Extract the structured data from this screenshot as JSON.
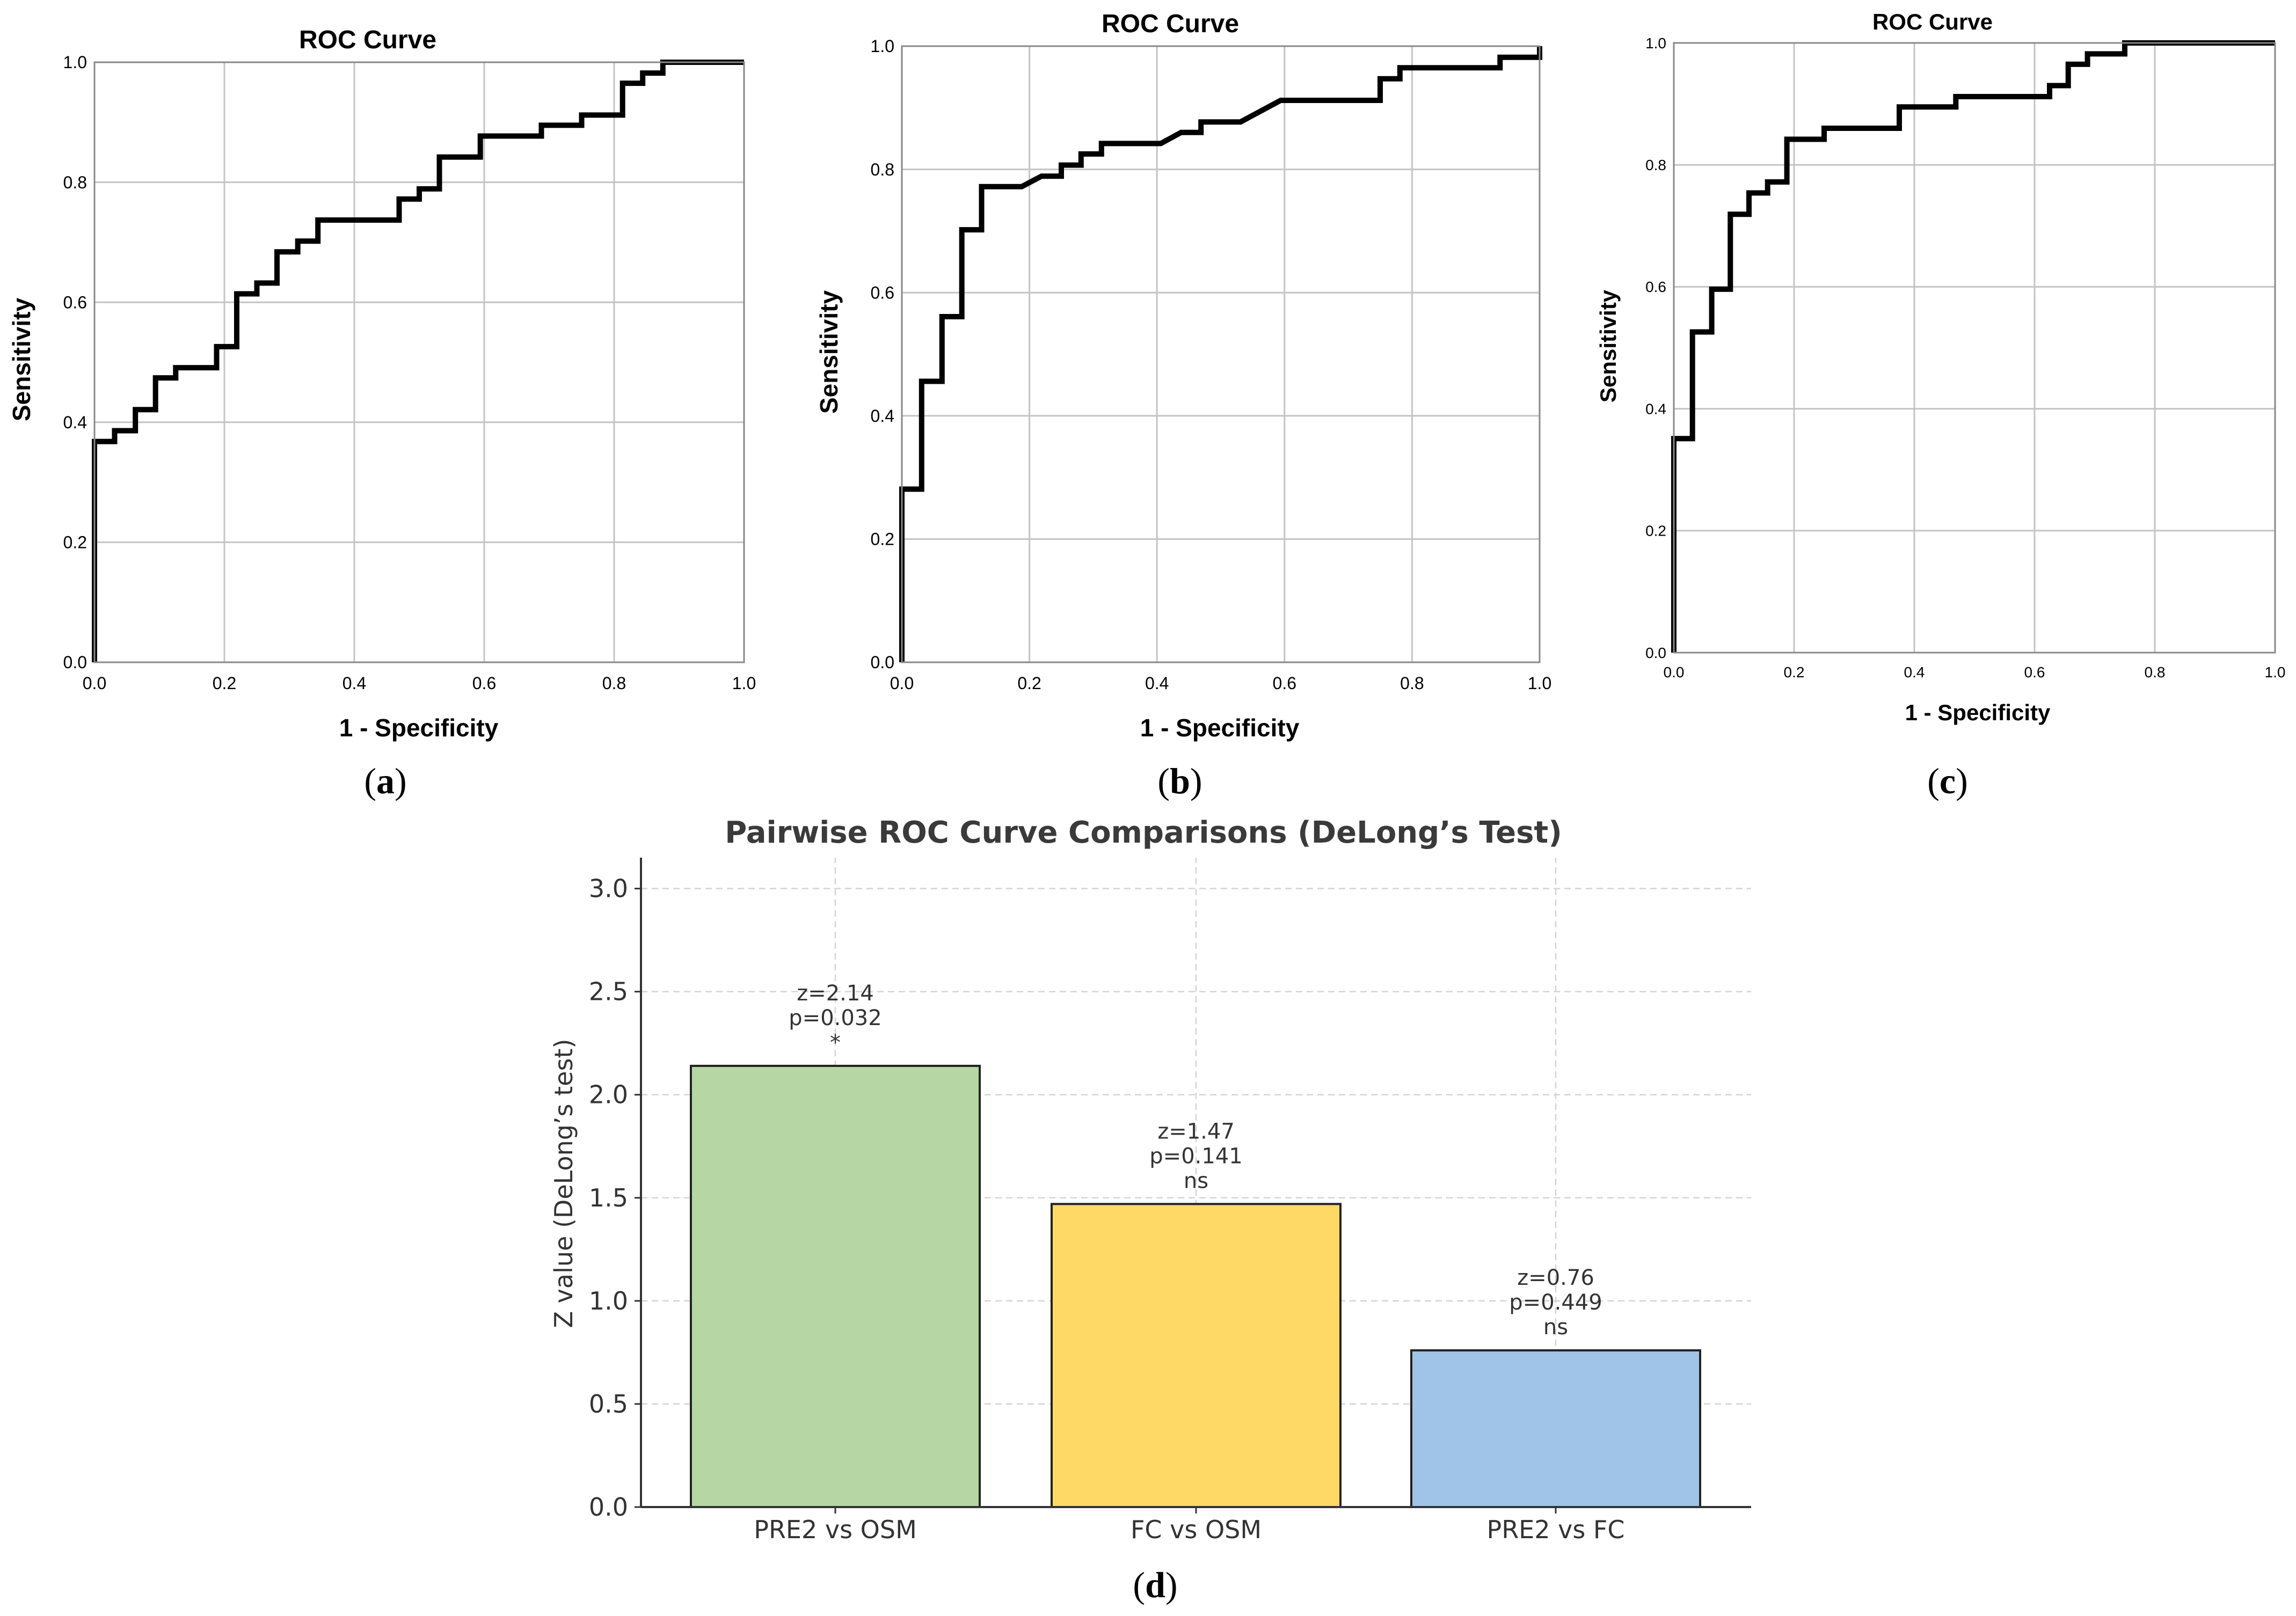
{
  "chart_data": [
    {
      "id": "a",
      "type": "line",
      "title": "ROC Curve",
      "xlabel": "1 - Specificity",
      "ylabel": "Sensitivity",
      "panel_label": "(a)",
      "panel_letter": "a",
      "xlim": [
        0,
        1
      ],
      "ylim": [
        0,
        1
      ],
      "xticks": [
        "0.0",
        "0.2",
        "0.4",
        "0.6",
        "0.8",
        "1.0"
      ],
      "yticks": [
        "0.0",
        "0.2",
        "0.4",
        "0.6",
        "0.8",
        "1.0"
      ],
      "grid": true,
      "points": [
        [
          0,
          0
        ],
        [
          0,
          0.368
        ],
        [
          0.031,
          0.368
        ],
        [
          0.031,
          0.386
        ],
        [
          0.063,
          0.386
        ],
        [
          0.063,
          0.421
        ],
        [
          0.094,
          0.421
        ],
        [
          0.094,
          0.474
        ],
        [
          0.125,
          0.474
        ],
        [
          0.125,
          0.491
        ],
        [
          0.188,
          0.491
        ],
        [
          0.188,
          0.526
        ],
        [
          0.219,
          0.526
        ],
        [
          0.219,
          0.614
        ],
        [
          0.25,
          0.614
        ],
        [
          0.25,
          0.632
        ],
        [
          0.281,
          0.632
        ],
        [
          0.281,
          0.684
        ],
        [
          0.313,
          0.684
        ],
        [
          0.313,
          0.702
        ],
        [
          0.344,
          0.702
        ],
        [
          0.344,
          0.737
        ],
        [
          0.469,
          0.737
        ],
        [
          0.469,
          0.772
        ],
        [
          0.5,
          0.772
        ],
        [
          0.5,
          0.789
        ],
        [
          0.531,
          0.789
        ],
        [
          0.531,
          0.842
        ],
        [
          0.594,
          0.842
        ],
        [
          0.594,
          0.877
        ],
        [
          0.688,
          0.877
        ],
        [
          0.688,
          0.895
        ],
        [
          0.75,
          0.895
        ],
        [
          0.75,
          0.912
        ],
        [
          0.813,
          0.912
        ],
        [
          0.813,
          0.965
        ],
        [
          0.844,
          0.965
        ],
        [
          0.844,
          0.982
        ],
        [
          0.875,
          0.982
        ],
        [
          0.875,
          1.0
        ],
        [
          1.0,
          1.0
        ]
      ]
    },
    {
      "id": "b",
      "type": "line",
      "title": "ROC Curve",
      "xlabel": "1 - Specificity",
      "ylabel": "Sensitivity",
      "panel_label": "(b)",
      "panel_letter": "b",
      "xlim": [
        0,
        1
      ],
      "ylim": [
        0,
        1
      ],
      "xticks": [
        "0.0",
        "0.2",
        "0.4",
        "0.6",
        "0.8",
        "1.0"
      ],
      "yticks": [
        "0.0",
        "0.2",
        "0.4",
        "0.6",
        "0.8",
        "1.0"
      ],
      "grid": true,
      "points": [
        [
          0,
          0
        ],
        [
          0,
          0.281
        ],
        [
          0.031,
          0.281
        ],
        [
          0.031,
          0.456
        ],
        [
          0.063,
          0.456
        ],
        [
          0.063,
          0.561
        ],
        [
          0.094,
          0.561
        ],
        [
          0.094,
          0.702
        ],
        [
          0.125,
          0.702
        ],
        [
          0.125,
          0.772
        ],
        [
          0.188,
          0.772
        ],
        [
          0.219,
          0.789
        ],
        [
          0.25,
          0.789
        ],
        [
          0.25,
          0.807
        ],
        [
          0.281,
          0.807
        ],
        [
          0.281,
          0.825
        ],
        [
          0.313,
          0.825
        ],
        [
          0.313,
          0.842
        ],
        [
          0.406,
          0.842
        ],
        [
          0.438,
          0.86
        ],
        [
          0.469,
          0.86
        ],
        [
          0.469,
          0.877
        ],
        [
          0.531,
          0.877
        ],
        [
          0.594,
          0.912
        ],
        [
          0.75,
          0.912
        ],
        [
          0.75,
          0.947
        ],
        [
          0.781,
          0.947
        ],
        [
          0.781,
          0.965
        ],
        [
          0.938,
          0.965
        ],
        [
          0.938,
          0.982
        ],
        [
          1.0,
          0.982
        ],
        [
          1.0,
          1.0
        ]
      ]
    },
    {
      "id": "c",
      "type": "line",
      "title": "ROC Curve",
      "xlabel": "1 - Specificity",
      "ylabel": "Sensitivity",
      "panel_label": "(c)",
      "panel_letter": "c",
      "xlim": [
        0,
        1
      ],
      "ylim": [
        0,
        1
      ],
      "xticks": [
        "0.0",
        "0.2",
        "0.4",
        "0.6",
        "0.8",
        "1.0"
      ],
      "yticks": [
        "0.0",
        "0.2",
        "0.4",
        "0.6",
        "0.8",
        "1.0"
      ],
      "grid": true,
      "points": [
        [
          0,
          0
        ],
        [
          0,
          0.351
        ],
        [
          0.031,
          0.351
        ],
        [
          0.031,
          0.526
        ],
        [
          0.063,
          0.526
        ],
        [
          0.063,
          0.596
        ],
        [
          0.094,
          0.596
        ],
        [
          0.094,
          0.719
        ],
        [
          0.125,
          0.719
        ],
        [
          0.125,
          0.754
        ],
        [
          0.156,
          0.754
        ],
        [
          0.156,
          0.772
        ],
        [
          0.188,
          0.772
        ],
        [
          0.188,
          0.842
        ],
        [
          0.25,
          0.842
        ],
        [
          0.25,
          0.86
        ],
        [
          0.375,
          0.86
        ],
        [
          0.375,
          0.895
        ],
        [
          0.469,
          0.895
        ],
        [
          0.469,
          0.912
        ],
        [
          0.625,
          0.912
        ],
        [
          0.625,
          0.93
        ],
        [
          0.656,
          0.93
        ],
        [
          0.656,
          0.965
        ],
        [
          0.688,
          0.965
        ],
        [
          0.688,
          0.982
        ],
        [
          0.75,
          0.982
        ],
        [
          0.75,
          1.0
        ],
        [
          1.0,
          1.0
        ]
      ]
    },
    {
      "id": "d",
      "type": "bar",
      "title": "Pairwise ROC Curve Comparisons (DeLong’s Test)",
      "xlabel": "",
      "ylabel": "Z value (DeLong’s test)",
      "panel_label": "(d)",
      "panel_letter": "d",
      "ylim": [
        0,
        3.15
      ],
      "yticks": [
        "0.0",
        "0.5",
        "1.0",
        "1.5",
        "2.0",
        "2.5",
        "3.0"
      ],
      "grid": true,
      "categories": [
        "PRE2 vs OSM",
        "FC vs OSM",
        "PRE2 vs FC"
      ],
      "values": [
        2.14,
        1.47,
        0.76
      ],
      "colors": [
        "#b6d7a4",
        "#ffd966",
        "#9fc4e8"
      ],
      "annotations": [
        {
          "z": "z=2.14",
          "p": "p=0.032",
          "sig": "*"
        },
        {
          "z": "z=1.47",
          "p": "p=0.141",
          "sig": "ns"
        },
        {
          "z": "z=0.76",
          "p": "p=0.449",
          "sig": "ns"
        }
      ]
    }
  ]
}
